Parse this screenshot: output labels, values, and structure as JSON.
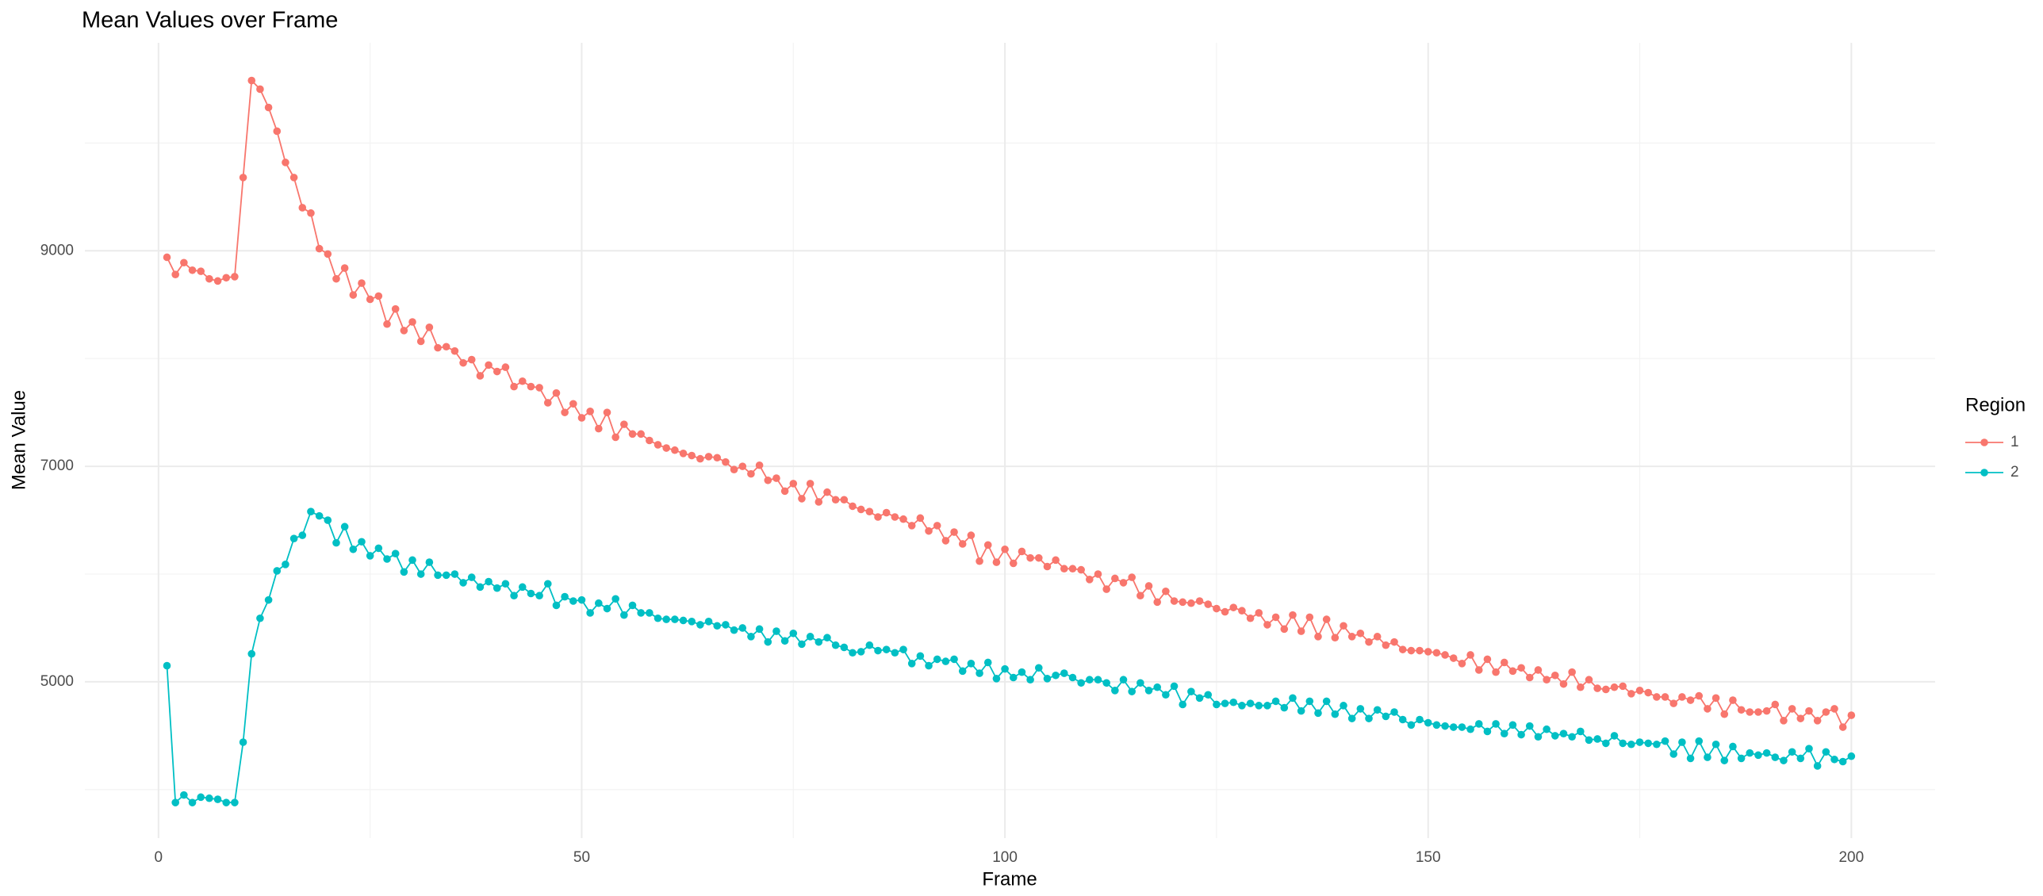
{
  "chart_data": {
    "type": "line",
    "title": "Mean Values over Frame",
    "x_label": "Frame",
    "y_label": "Mean Value",
    "legend_title": "Region",
    "legend": "right",
    "grid": true,
    "xlim": [
      -8.7,
      209.9
    ],
    "xticks": [
      0,
      50,
      100,
      150,
      200
    ],
    "xminor": [
      25,
      75,
      125,
      175
    ],
    "ylim": [
      3550,
      10930
    ],
    "yticks": [
      5000,
      7000,
      9000
    ],
    "yminor": [
      4000,
      6000,
      8000,
      10000
    ],
    "x": [
      1,
      2,
      3,
      4,
      5,
      6,
      7,
      8,
      9,
      10,
      11,
      12,
      13,
      14,
      15,
      16,
      17,
      18,
      19,
      20,
      21,
      22,
      23,
      24,
      25,
      26,
      27,
      28,
      29,
      30,
      31,
      32,
      33,
      34,
      35,
      36,
      37,
      38,
      39,
      40,
      41,
      42,
      43,
      44,
      45,
      46,
      47,
      48,
      49,
      50,
      51,
      52,
      53,
      54,
      55,
      56,
      57,
      58,
      59,
      60,
      61,
      62,
      63,
      64,
      65,
      66,
      67,
      68,
      69,
      70,
      71,
      72,
      73,
      74,
      75,
      76,
      77,
      78,
      79,
      80,
      81,
      82,
      83,
      84,
      85,
      86,
      87,
      88,
      89,
      90,
      91,
      92,
      93,
      94,
      95,
      96,
      97,
      98,
      99,
      100,
      101,
      102,
      103,
      104,
      105,
      106,
      107,
      108,
      109,
      110,
      111,
      112,
      113,
      114,
      115,
      116,
      117,
      118,
      119,
      120,
      121,
      122,
      123,
      124,
      125,
      126,
      127,
      128,
      129,
      130,
      131,
      132,
      133,
      134,
      135,
      136,
      137,
      138,
      139,
      140,
      141,
      142,
      143,
      144,
      145,
      146,
      147,
      148,
      149,
      150,
      151,
      152,
      153,
      154,
      155,
      156,
      157,
      158,
      159,
      160,
      161,
      162,
      163,
      164,
      165,
      166,
      167,
      168,
      169,
      170,
      171,
      172,
      173,
      174,
      175,
      176,
      177,
      178,
      179,
      180,
      181,
      182,
      183,
      184,
      185,
      186,
      187,
      188,
      189,
      190,
      191,
      192,
      193,
      194,
      195,
      196,
      197,
      198,
      199,
      200
    ],
    "series": [
      {
        "name": "1",
        "color": "#F8766D",
        "values": [
          8940,
          8780,
          8890,
          8820,
          8810,
          8740,
          8720,
          8750,
          8760,
          9680,
          10580,
          10500,
          10330,
          10110,
          9820,
          9680,
          9400,
          9350,
          9020,
          8970,
          8740,
          8840,
          8590,
          8700,
          8550,
          8580,
          8320,
          8460,
          8260,
          8340,
          8160,
          8290,
          8100,
          8110,
          8070,
          7960,
          7990,
          7840,
          7940,
          7880,
          7920,
          7740,
          7790,
          7740,
          7730,
          7590,
          7680,
          7500,
          7580,
          7450,
          7510,
          7350,
          7500,
          7270,
          7390,
          7300,
          7300,
          7240,
          7200,
          7170,
          7150,
          7120,
          7100,
          7070,
          7090,
          7080,
          7040,
          6970,
          7000,
          6930,
          7010,
          6870,
          6890,
          6770,
          6840,
          6700,
          6840,
          6670,
          6760,
          6690,
          6690,
          6630,
          6600,
          6580,
          6530,
          6570,
          6530,
          6510,
          6450,
          6520,
          6400,
          6450,
          6310,
          6390,
          6280,
          6360,
          6120,
          6270,
          6110,
          6230,
          6100,
          6210,
          6150,
          6150,
          6070,
          6130,
          6050,
          6050,
          6040,
          5950,
          6000,
          5860,
          5960,
          5920,
          5970,
          5800,
          5890,
          5740,
          5840,
          5750,
          5740,
          5730,
          5750,
          5720,
          5680,
          5650,
          5690,
          5660,
          5590,
          5640,
          5530,
          5600,
          5490,
          5620,
          5470,
          5600,
          5420,
          5580,
          5410,
          5520,
          5420,
          5450,
          5370,
          5420,
          5340,
          5370,
          5300,
          5290,
          5290,
          5280,
          5270,
          5250,
          5220,
          5170,
          5250,
          5110,
          5210,
          5090,
          5180,
          5100,
          5130,
          5040,
          5110,
          5020,
          5060,
          4980,
          5090,
          4950,
          5020,
          4940,
          4930,
          4950,
          4960,
          4890,
          4920,
          4900,
          4860,
          4860,
          4800,
          4860,
          4830,
          4870,
          4750,
          4850,
          4700,
          4830,
          4740,
          4720,
          4720,
          4730,
          4790,
          4640,
          4750,
          4660,
          4730,
          4640,
          4720,
          4750,
          4580,
          4690
        ]
      },
      {
        "name": "2",
        "color": "#00BFC4",
        "values": [
          5150,
          3880,
          3950,
          3880,
          3930,
          3920,
          3910,
          3880,
          3880,
          4440,
          5260,
          5590,
          5760,
          6030,
          6090,
          6330,
          6360,
          6580,
          6540,
          6500,
          6290,
          6440,
          6230,
          6300,
          6170,
          6240,
          6140,
          6190,
          6020,
          6130,
          6000,
          6110,
          5990,
          5990,
          6000,
          5920,
          5970,
          5880,
          5930,
          5870,
          5910,
          5800,
          5880,
          5820,
          5800,
          5910,
          5710,
          5790,
          5750,
          5760,
          5640,
          5730,
          5680,
          5770,
          5620,
          5710,
          5640,
          5640,
          5590,
          5580,
          5580,
          5570,
          5560,
          5530,
          5560,
          5520,
          5530,
          5480,
          5500,
          5420,
          5490,
          5370,
          5470,
          5380,
          5450,
          5350,
          5420,
          5370,
          5410,
          5340,
          5320,
          5270,
          5280,
          5340,
          5290,
          5300,
          5270,
          5300,
          5170,
          5240,
          5150,
          5210,
          5190,
          5210,
          5100,
          5170,
          5080,
          5180,
          5030,
          5120,
          5040,
          5090,
          5020,
          5130,
          5030,
          5060,
          5080,
          5040,
          4990,
          5020,
          5020,
          4990,
          4920,
          5020,
          4910,
          4990,
          4920,
          4950,
          4880,
          4960,
          4790,
          4910,
          4850,
          4880,
          4790,
          4800,
          4810,
          4780,
          4800,
          4780,
          4780,
          4820,
          4760,
          4850,
          4730,
          4820,
          4710,
          4820,
          4700,
          4780,
          4660,
          4750,
          4660,
          4740,
          4680,
          4720,
          4650,
          4600,
          4650,
          4620,
          4600,
          4590,
          4580,
          4580,
          4560,
          4610,
          4540,
          4610,
          4520,
          4600,
          4510,
          4590,
          4490,
          4560,
          4500,
          4520,
          4490,
          4540,
          4460,
          4470,
          4430,
          4500,
          4430,
          4420,
          4440,
          4430,
          4420,
          4450,
          4330,
          4440,
          4290,
          4450,
          4300,
          4420,
          4270,
          4400,
          4290,
          4340,
          4320,
          4340,
          4300,
          4270,
          4350,
          4290,
          4380,
          4220,
          4350,
          4280,
          4260,
          4310
        ]
      }
    ]
  }
}
